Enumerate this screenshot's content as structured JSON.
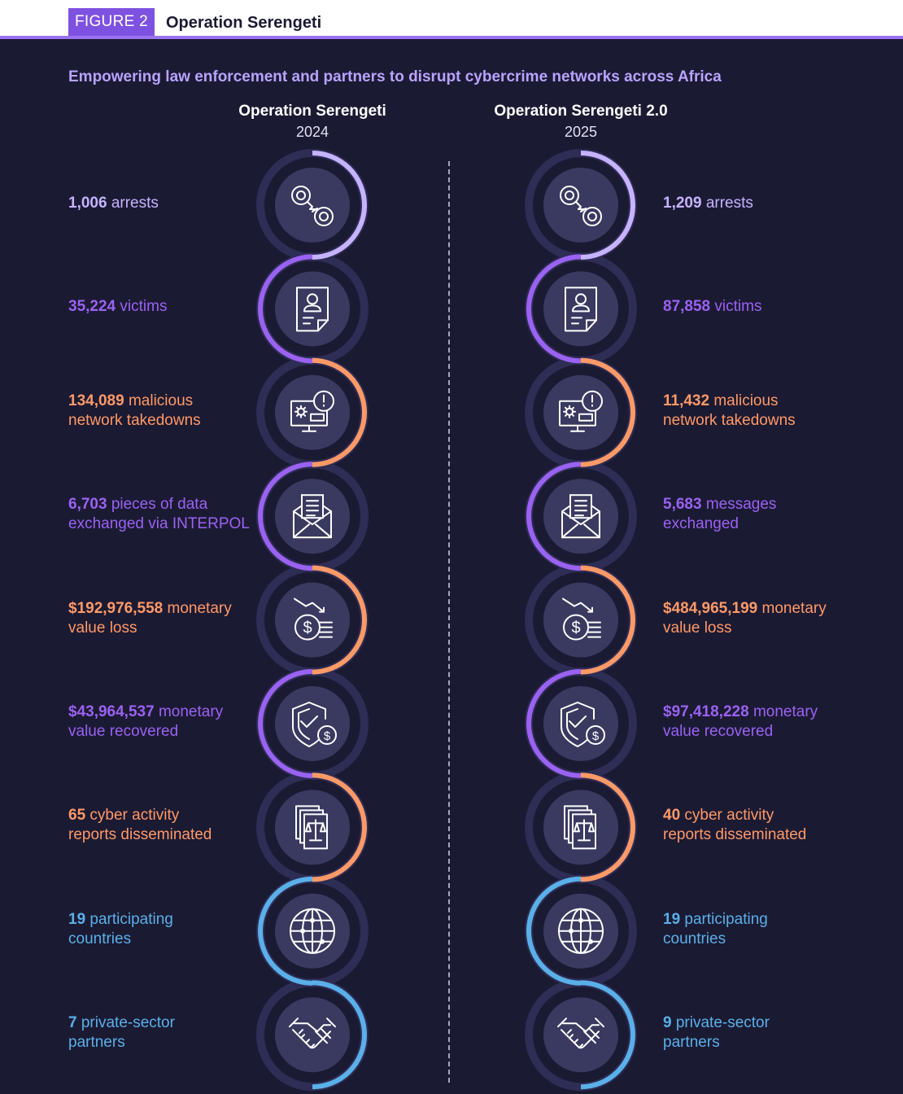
{
  "header": {
    "figure_label": "FIGURE 2",
    "title": "Operation Serengeti"
  },
  "subtitle": "Empowering law enforcement and partners to disrupt cybercrime networks across Africa",
  "colors": {
    "lavender": "#c6b3ff",
    "purple": "#9a62f2",
    "orange": "#ff9966",
    "blue": "#5ab0e8",
    "background": "#1b1a33"
  },
  "columns": [
    {
      "name": "Operation Serengeti",
      "year": "2024",
      "stats": [
        {
          "value": "1,006",
          "label1": " arrests",
          "label2": "",
          "color": "lavender",
          "icon": "handcuffs-icon"
        },
        {
          "value": "35,224",
          "label1": " victims",
          "label2": "",
          "color": "purple",
          "icon": "victim-profile-icon"
        },
        {
          "value": "134,089",
          "label1": " malicious",
          "label2": "network takedowns",
          "color": "orange",
          "icon": "malware-monitor-icon"
        },
        {
          "value": "6,703",
          "label1": " pieces of data",
          "label2": "exchanged via INTERPOL",
          "color": "purple",
          "icon": "envelope-icon"
        },
        {
          "value": "$192,976,558",
          "label1": " monetary",
          "label2": "value loss",
          "color": "orange",
          "icon": "money-loss-icon"
        },
        {
          "value": "$43,964,537",
          "label1": " monetary",
          "label2": "value recovered",
          "color": "purple",
          "icon": "shield-dollar-icon"
        },
        {
          "value": "65",
          "label1": " cyber activity",
          "label2": "reports disseminated",
          "color": "orange",
          "icon": "legal-report-icon"
        },
        {
          "value": "19",
          "label1": " participating",
          "label2": "countries",
          "color": "blue",
          "icon": "globe-icon"
        },
        {
          "value": "7",
          "label1": " private-sector",
          "label2": "partners",
          "color": "blue",
          "icon": "handshake-icon"
        }
      ]
    },
    {
      "name": "Operation Serengeti 2.0",
      "year": "2025",
      "stats": [
        {
          "value": "1,209",
          "label1": " arrests",
          "label2": "",
          "color": "lavender",
          "icon": "handcuffs-icon"
        },
        {
          "value": "87,858",
          "label1": " victims",
          "label2": "",
          "color": "purple",
          "icon": "victim-profile-icon"
        },
        {
          "value": "11,432",
          "label1": " malicious",
          "label2": "network takedowns",
          "color": "orange",
          "icon": "malware-monitor-icon"
        },
        {
          "value": "5,683",
          "label1": " messages",
          "label2": "exchanged",
          "color": "purple",
          "icon": "envelope-icon"
        },
        {
          "value": "$484,965,199",
          "label1": " monetary",
          "label2": "value loss",
          "color": "orange",
          "icon": "money-loss-icon"
        },
        {
          "value": "$97,418,228",
          "label1": " monetary",
          "label2": "value recovered",
          "color": "purple",
          "icon": "shield-dollar-icon"
        },
        {
          "value": "40",
          "label1": " cyber activity",
          "label2": "reports disseminated",
          "color": "orange",
          "icon": "legal-report-icon"
        },
        {
          "value": "19",
          "label1": " participating",
          "label2": "countries",
          "color": "blue",
          "icon": "globe-icon"
        },
        {
          "value": "9",
          "label1": " private-sector",
          "label2": "partners",
          "color": "blue",
          "icon": "handshake-icon"
        }
      ]
    }
  ]
}
